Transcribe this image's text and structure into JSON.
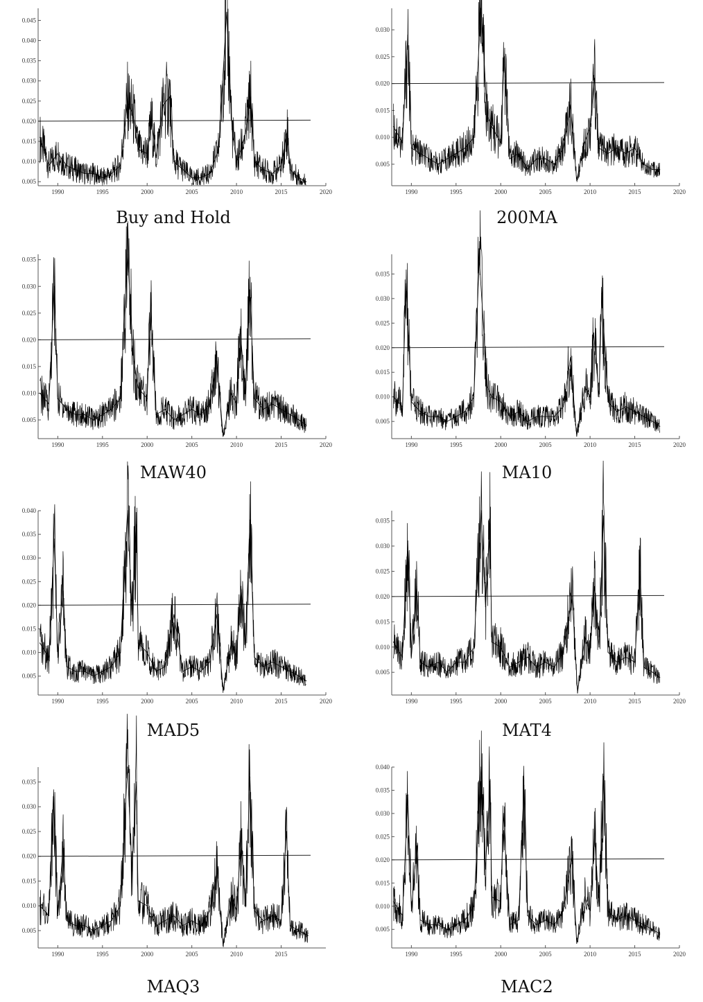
{
  "chart_data": [
    {
      "type": "line",
      "caption": "Buy and Hold",
      "x_ticks": [
        "1990",
        "1995",
        "2000",
        "2005",
        "2010",
        "2015",
        "2020"
      ],
      "y_ticks": [
        "0.005",
        "0.010",
        "0.015",
        "0.020",
        "0.025",
        "0.030",
        "0.035",
        "0.040",
        "0.045"
      ],
      "xlim": [
        1987.8,
        2020
      ],
      "ylim": [
        0.004,
        0.048
      ],
      "reference_line": 0.02,
      "series": [
        {
          "x": [
            1988,
            1989,
            1990,
            1991,
            1992,
            1993,
            1994,
            1995,
            1996,
            1997,
            1997.8,
            1998.5,
            1999,
            2000,
            2000.5,
            2001,
            2001.8,
            2002.5,
            2003,
            2004,
            2005,
            2006,
            2007,
            2008,
            2008.9,
            2009.5,
            2010,
            2010.5,
            2011,
            2011.6,
            2012,
            2013,
            2014,
            2015,
            2015.7,
            2016,
            2017,
            2017.8
          ],
          "y": [
            0.016,
            0.009,
            0.012,
            0.009,
            0.008,
            0.007,
            0.007,
            0.006,
            0.007,
            0.009,
            0.025,
            0.021,
            0.013,
            0.012,
            0.02,
            0.011,
            0.024,
            0.026,
            0.01,
            0.008,
            0.006,
            0.006,
            0.007,
            0.013,
            0.047,
            0.018,
            0.01,
            0.013,
            0.017,
            0.026,
            0.01,
            0.008,
            0.007,
            0.009,
            0.018,
            0.008,
            0.006,
            0.005
          ]
        }
      ]
    },
    {
      "type": "line",
      "caption": "200MA",
      "x_ticks": [
        "1990",
        "1995",
        "2000",
        "2005",
        "2010",
        "2015",
        "2020"
      ],
      "y_ticks": [
        "0.005",
        "0.010",
        "0.015",
        "0.020",
        "0.025",
        "0.030"
      ],
      "xlim": [
        1987.8,
        2020
      ],
      "ylim": [
        0.001,
        0.034
      ],
      "reference_line": 0.02,
      "series": [
        {
          "x": [
            1988,
            1989,
            1989.6,
            1990,
            1991,
            1992,
            1993,
            1994,
            1995,
            1996,
            1997,
            1997.8,
            1998.5,
            1999,
            2000,
            2000.4,
            2001,
            2002,
            2003,
            2004,
            2005,
            2006,
            2007,
            2007.8,
            2008.5,
            2009.4,
            2010,
            2010.5,
            2011,
            2012,
            2013,
            2014,
            2015,
            2016,
            2017,
            2017.8
          ],
          "y": [
            0.012,
            0.009,
            0.029,
            0.008,
            0.007,
            0.006,
            0.005,
            0.006,
            0.007,
            0.008,
            0.01,
            0.034,
            0.014,
            0.012,
            0.009,
            0.025,
            0.006,
            0.007,
            0.004,
            0.006,
            0.006,
            0.005,
            0.008,
            0.016,
            0.002,
            0.009,
            0.012,
            0.021,
            0.008,
            0.007,
            0.008,
            0.007,
            0.008,
            0.005,
            0.004,
            0.004
          ]
        }
      ]
    },
    {
      "type": "line",
      "caption": "MAW40",
      "x_ticks": [
        "1990",
        "1995",
        "2000",
        "2005",
        "2010",
        "2015",
        "2020"
      ],
      "y_ticks": [
        "0.005",
        "0.010",
        "0.015",
        "0.020",
        "0.025",
        "0.030",
        "0.035"
      ],
      "xlim": [
        1987.8,
        2020
      ],
      "ylim": [
        0.0015,
        0.036
      ],
      "reference_line": 0.02,
      "series": [
        {
          "x": [
            1988,
            1989,
            1989.6,
            1990,
            1991,
            1992,
            1993,
            1994,
            1995,
            1996,
            1997,
            1997.8,
            1998.5,
            1999,
            2000,
            2000.4,
            2001,
            2002,
            2003,
            2004,
            2005,
            2006,
            2007,
            2007.8,
            2008.5,
            2009.4,
            2010,
            2010.4,
            2011,
            2011.5,
            2012,
            2013,
            2014,
            2015,
            2016,
            2017,
            2017.8
          ],
          "y": [
            0.01,
            0.008,
            0.03,
            0.009,
            0.007,
            0.006,
            0.006,
            0.005,
            0.006,
            0.007,
            0.009,
            0.036,
            0.016,
            0.011,
            0.009,
            0.026,
            0.006,
            0.007,
            0.005,
            0.006,
            0.007,
            0.006,
            0.008,
            0.016,
            0.002,
            0.01,
            0.008,
            0.022,
            0.01,
            0.029,
            0.009,
            0.007,
            0.008,
            0.007,
            0.006,
            0.005,
            0.004
          ]
        }
      ]
    },
    {
      "type": "line",
      "caption": "MA10",
      "x_ticks": [
        "1990",
        "1995",
        "2000",
        "2005",
        "2010",
        "2015",
        "2020"
      ],
      "y_ticks": [
        "0.005",
        "0.010",
        "0.015",
        "0.020",
        "0.025",
        "0.030",
        "0.035"
      ],
      "xlim": [
        1987.8,
        2020
      ],
      "ylim": [
        0.0015,
        0.039
      ],
      "reference_line": 0.02,
      "series": [
        {
          "x": [
            1988,
            1989,
            1989.4,
            1990,
            1991,
            1992,
            1993,
            1994,
            1995,
            1996,
            1997,
            1997.6,
            1998.5,
            1999,
            2000,
            2001,
            2002,
            2003,
            2004,
            2005,
            2006,
            2007,
            2007.8,
            2008.5,
            2009.4,
            2010,
            2010.4,
            2011,
            2011.3,
            2012,
            2013,
            2014,
            2015,
            2016,
            2017,
            2017.8
          ],
          "y": [
            0.01,
            0.008,
            0.033,
            0.009,
            0.007,
            0.006,
            0.006,
            0.005,
            0.006,
            0.007,
            0.01,
            0.038,
            0.012,
            0.01,
            0.009,
            0.006,
            0.007,
            0.005,
            0.006,
            0.006,
            0.006,
            0.008,
            0.018,
            0.002,
            0.012,
            0.01,
            0.023,
            0.01,
            0.031,
            0.009,
            0.007,
            0.008,
            0.007,
            0.006,
            0.005,
            0.004
          ]
        }
      ]
    },
    {
      "type": "line",
      "caption": "MAD5",
      "x_ticks": [
        "1990",
        "1995",
        "2000",
        "2005",
        "2010",
        "2015",
        "2020"
      ],
      "y_ticks": [
        "0.005",
        "0.010",
        "0.015",
        "0.020",
        "0.025",
        "0.030",
        "0.035",
        "0.040"
      ],
      "xlim": [
        1987.8,
        2020
      ],
      "ylim": [
        0.001,
        0.04
      ],
      "reference_line": 0.02,
      "series": [
        {
          "x": [
            1988,
            1989,
            1989.6,
            1990,
            1990.6,
            1991,
            1992,
            1993,
            1994,
            1995,
            1996,
            1997,
            1997.8,
            1998.3,
            1998.8,
            1999,
            2000,
            2001,
            2002,
            2003,
            2004,
            2005,
            2006,
            2007,
            2007.8,
            2008.5,
            2009.4,
            2010,
            2010.5,
            2011,
            2011.5,
            2012,
            2013,
            2014,
            2015,
            2016,
            2017,
            2017.8
          ],
          "y": [
            0.012,
            0.009,
            0.034,
            0.009,
            0.023,
            0.007,
            0.006,
            0.006,
            0.005,
            0.006,
            0.007,
            0.01,
            0.04,
            0.018,
            0.037,
            0.012,
            0.01,
            0.006,
            0.007,
            0.018,
            0.006,
            0.007,
            0.006,
            0.008,
            0.018,
            0.002,
            0.012,
            0.009,
            0.024,
            0.011,
            0.038,
            0.009,
            0.007,
            0.008,
            0.007,
            0.006,
            0.005,
            0.004
          ]
        }
      ]
    },
    {
      "type": "line",
      "caption": "MAT4",
      "x_ticks": [
        "1990",
        "1995",
        "2000",
        "2005",
        "2010",
        "2015",
        "2020"
      ],
      "y_ticks": [
        "0.005",
        "0.010",
        "0.015",
        "0.020",
        "0.025",
        "0.030",
        "0.035"
      ],
      "xlim": [
        1987.8,
        2020
      ],
      "ylim": [
        0.0005,
        0.037
      ],
      "reference_line": 0.02,
      "series": [
        {
          "x": [
            1988,
            1989,
            1989.6,
            1990,
            1990.6,
            1991,
            1992,
            1993,
            1994,
            1995,
            1996,
            1997,
            1997.8,
            1998.3,
            1998.8,
            1999,
            2000,
            2001,
            2002,
            2003,
            2004,
            2005,
            2006,
            2007,
            2008,
            2008.6,
            2009.4,
            2010,
            2010.5,
            2011,
            2011.5,
            2012,
            2013,
            2014,
            2015,
            2015.6,
            2016,
            2017,
            2017.8
          ],
          "y": [
            0.011,
            0.008,
            0.031,
            0.008,
            0.022,
            0.007,
            0.006,
            0.007,
            0.005,
            0.007,
            0.007,
            0.01,
            0.037,
            0.018,
            0.034,
            0.011,
            0.01,
            0.006,
            0.007,
            0.008,
            0.006,
            0.007,
            0.006,
            0.009,
            0.02,
            0.001,
            0.012,
            0.009,
            0.022,
            0.01,
            0.036,
            0.009,
            0.007,
            0.008,
            0.007,
            0.025,
            0.006,
            0.005,
            0.004
          ]
        }
      ]
    },
    {
      "type": "line",
      "caption": "MAQ3",
      "x_ticks": [
        "1990",
        "1995",
        "2000",
        "2005",
        "2010",
        "2015"
      ],
      "y_ticks": [
        "0.005",
        "0.010",
        "0.015",
        "0.020",
        "0.025",
        "0.030",
        "0.035"
      ],
      "xlim": [
        1987.8,
        2020
      ],
      "ylim": [
        0.0015,
        0.038
      ],
      "reference_line": 0.02,
      "series": [
        {
          "x": [
            1988,
            1989,
            1989.5,
            1990,
            1990.6,
            1991,
            1992,
            1993,
            1994,
            1995,
            1996,
            1997,
            1997.8,
            1998.3,
            1998.8,
            1999,
            2000,
            2001,
            2002,
            2003,
            2004,
            2005,
            2006,
            2007,
            2007.8,
            2008.5,
            2009.5,
            2010,
            2010.5,
            2011,
            2011.5,
            2012,
            2013,
            2014,
            2015,
            2015.6,
            2016,
            2017,
            2018
          ],
          "y": [
            0.01,
            0.008,
            0.032,
            0.008,
            0.022,
            0.007,
            0.006,
            0.006,
            0.005,
            0.006,
            0.007,
            0.01,
            0.038,
            0.017,
            0.035,
            0.011,
            0.01,
            0.006,
            0.007,
            0.008,
            0.006,
            0.007,
            0.006,
            0.009,
            0.017,
            0.002,
            0.012,
            0.009,
            0.023,
            0.01,
            0.036,
            0.009,
            0.007,
            0.008,
            0.007,
            0.025,
            0.006,
            0.005,
            0.004
          ]
        }
      ]
    },
    {
      "type": "line",
      "caption": "MAC2",
      "x_ticks": [
        "1990",
        "1995",
        "2000",
        "2005",
        "2010",
        "2015",
        "2020"
      ],
      "y_ticks": [
        "0.005",
        "0.010",
        "0.015",
        "0.020",
        "0.025",
        "0.030",
        "0.035",
        "0.040"
      ],
      "xlim": [
        1987.8,
        2020
      ],
      "ylim": [
        0.001,
        0.04
      ],
      "reference_line": 0.02,
      "series": [
        {
          "x": [
            1988,
            1989,
            1989.6,
            1990,
            1990.6,
            1991,
            1992,
            1993,
            1994,
            1995,
            1996,
            1997,
            1997.8,
            1998.3,
            1998.8,
            1999,
            2000,
            2000.3,
            2001,
            2002,
            2002.6,
            2003,
            2004,
            2005,
            2006,
            2007,
            2008,
            2008.5,
            2009.4,
            2010,
            2010.5,
            2011,
            2011.5,
            2012,
            2013,
            2014,
            2015,
            2016,
            2017,
            2017.8
          ],
          "y": [
            0.011,
            0.008,
            0.034,
            0.009,
            0.023,
            0.007,
            0.006,
            0.006,
            0.005,
            0.006,
            0.007,
            0.01,
            0.04,
            0.018,
            0.037,
            0.012,
            0.011,
            0.03,
            0.006,
            0.007,
            0.036,
            0.008,
            0.006,
            0.007,
            0.006,
            0.009,
            0.021,
            0.002,
            0.012,
            0.009,
            0.025,
            0.01,
            0.038,
            0.009,
            0.007,
            0.008,
            0.007,
            0.006,
            0.005,
            0.004
          ]
        }
      ]
    }
  ]
}
